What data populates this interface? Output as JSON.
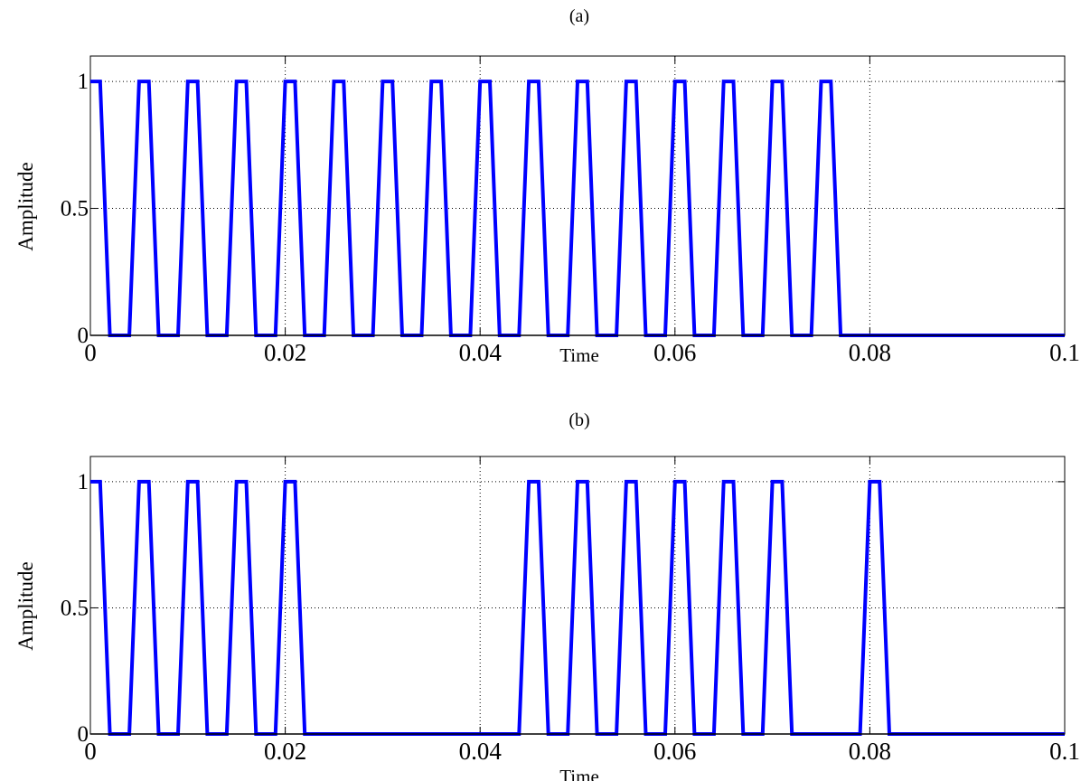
{
  "chart_data": [
    {
      "type": "line",
      "title": "(a)",
      "xlabel": "Time",
      "ylabel": "Amplitude",
      "xlim": [
        0,
        0.1
      ],
      "ylim": [
        0,
        1.1
      ],
      "xticks": [
        0,
        0.02,
        0.04,
        0.06,
        0.08,
        0.1
      ],
      "xtick_labels": [
        "0",
        "0.02",
        "0.04",
        "0.06",
        "0.08",
        "0.1"
      ],
      "yticks": [
        0,
        0.5,
        1
      ],
      "ytick_labels": [
        "0",
        "0.5",
        "1"
      ],
      "grid": true,
      "color": "#0000ff",
      "series": [
        {
          "x": [
            0,
            0.001,
            0.002,
            0.004,
            0.005,
            0.006,
            0.007,
            0.009,
            0.01,
            0.011,
            0.012,
            0.014,
            0.015,
            0.016,
            0.017,
            0.019,
            0.02,
            0.021,
            0.022,
            0.024,
            0.025,
            0.026,
            0.027,
            0.029,
            0.03,
            0.031,
            0.032,
            0.034,
            0.035,
            0.036,
            0.037,
            0.039,
            0.04,
            0.041,
            0.042,
            0.044,
            0.045,
            0.046,
            0.047,
            0.049,
            0.05,
            0.051,
            0.052,
            0.054,
            0.055,
            0.056,
            0.057,
            0.059,
            0.06,
            0.061,
            0.062,
            0.064,
            0.065,
            0.066,
            0.067,
            0.069,
            0.07,
            0.071,
            0.072,
            0.074,
            0.075,
            0.076,
            0.077,
            0.1
          ],
          "y": [
            1,
            1,
            0,
            0,
            1,
            1,
            0,
            0,
            1,
            1,
            0,
            0,
            1,
            1,
            0,
            0,
            1,
            1,
            0,
            0,
            1,
            1,
            0,
            0,
            1,
            1,
            0,
            0,
            1,
            1,
            0,
            0,
            1,
            1,
            0,
            0,
            1,
            1,
            0,
            0,
            1,
            1,
            0,
            0,
            1,
            1,
            0,
            0,
            1,
            1,
            0,
            0,
            1,
            1,
            0,
            0,
            1,
            1,
            0,
            0,
            1,
            1,
            0,
            0
          ]
        }
      ]
    },
    {
      "type": "line",
      "title": "(b)",
      "xlabel": "Time",
      "ylabel": "Amplitude",
      "xlim": [
        0,
        0.1
      ],
      "ylim": [
        0,
        1.1
      ],
      "xticks": [
        0,
        0.02,
        0.04,
        0.06,
        0.08,
        0.1
      ],
      "xtick_labels": [
        "0",
        "0.02",
        "0.04",
        "0.06",
        "0.08",
        "0.1"
      ],
      "yticks": [
        0,
        0.5,
        1
      ],
      "ytick_labels": [
        "0",
        "0.5",
        "1"
      ],
      "grid": true,
      "color": "#0000ff",
      "series": [
        {
          "x": [
            0,
            0.001,
            0.002,
            0.004,
            0.005,
            0.006,
            0.007,
            0.009,
            0.01,
            0.011,
            0.012,
            0.014,
            0.015,
            0.016,
            0.017,
            0.019,
            0.02,
            0.021,
            0.022,
            0.044,
            0.045,
            0.046,
            0.047,
            0.049,
            0.05,
            0.051,
            0.052,
            0.054,
            0.055,
            0.056,
            0.057,
            0.059,
            0.06,
            0.061,
            0.062,
            0.064,
            0.065,
            0.066,
            0.067,
            0.069,
            0.07,
            0.071,
            0.072,
            0.079,
            0.08,
            0.081,
            0.082,
            0.1
          ],
          "y": [
            1,
            1,
            0,
            0,
            1,
            1,
            0,
            0,
            1,
            1,
            0,
            0,
            1,
            1,
            0,
            0,
            1,
            1,
            0,
            0,
            1,
            1,
            0,
            0,
            1,
            1,
            0,
            0,
            1,
            1,
            0,
            0,
            1,
            1,
            0,
            0,
            1,
            1,
            0,
            0,
            1,
            1,
            0,
            0,
            1,
            1,
            0,
            0
          ]
        }
      ]
    }
  ]
}
